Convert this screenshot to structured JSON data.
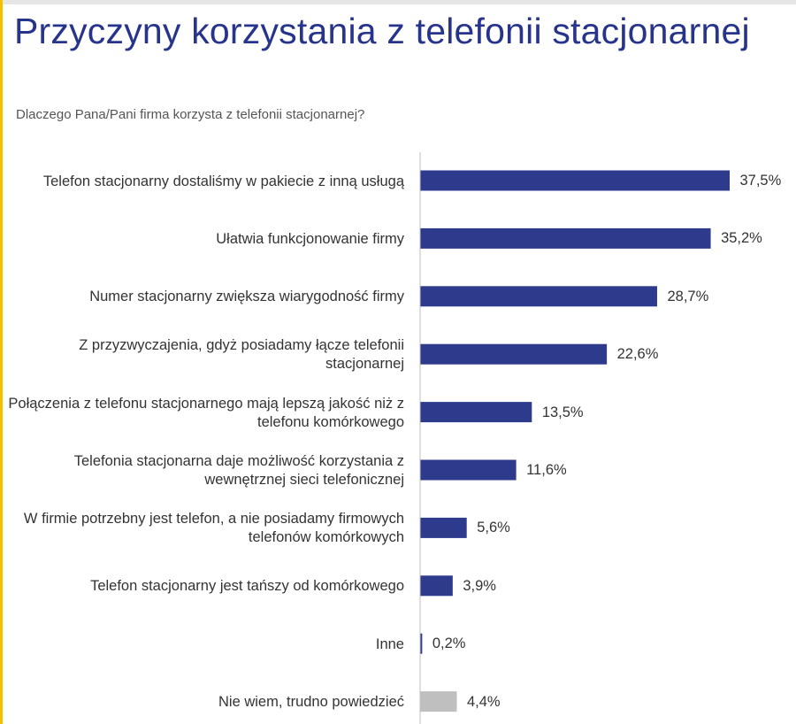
{
  "page": {
    "title": "Przyczyny korzystania z telefonii stacjonarnej",
    "subtitle": "Dlaczego Pana/Pani firma korzysta z telefonii stacjonarnej?"
  },
  "colors": {
    "bar_primary": "#2e3a8c",
    "bar_secondary": "#bfbfbf",
    "title": "#27348b",
    "accent": "#f2c200",
    "axis": "#bfbfbf"
  },
  "chart_data": {
    "type": "bar",
    "orientation": "horizontal",
    "categories": [
      "Telefon stacjonarny dostaliśmy w pakiecie z inną usługą",
      "Ułatwia funkcjonowanie firmy",
      "Numer stacjonarny zwiększa wiarygodność firmy",
      "Z przyzwyczajenia, gdyż posiadamy łącze telefonii stacjonarnej",
      "Połączenia z telefonu stacjonarnego mają lepszą jakość niż z telefonu komórkowego",
      "Telefonia stacjonarna daje możliwość korzystania z wewnętrznej sieci telefonicznej",
      "W firmie potrzebny jest telefon, a nie posiadamy firmowych telefonów komórkowych",
      "Telefon stacjonarny jest tańszy od komórkowego",
      "Inne",
      "Nie wiem, trudno powiedzieć"
    ],
    "values": [
      37.5,
      35.2,
      28.7,
      22.6,
      13.5,
      11.6,
      5.6,
      3.9,
      0.2,
      4.4
    ],
    "value_labels": [
      "37,5%",
      "35,2%",
      "28,7%",
      "22,6%",
      "13,5%",
      "11,6%",
      "5,6%",
      "3,9%",
      "0,2%",
      "4,4%"
    ],
    "bar_colors": [
      "primary",
      "primary",
      "primary",
      "primary",
      "primary",
      "primary",
      "primary",
      "primary",
      "primary",
      "secondary"
    ],
    "unit": "%",
    "grid": false,
    "legend": "none"
  }
}
